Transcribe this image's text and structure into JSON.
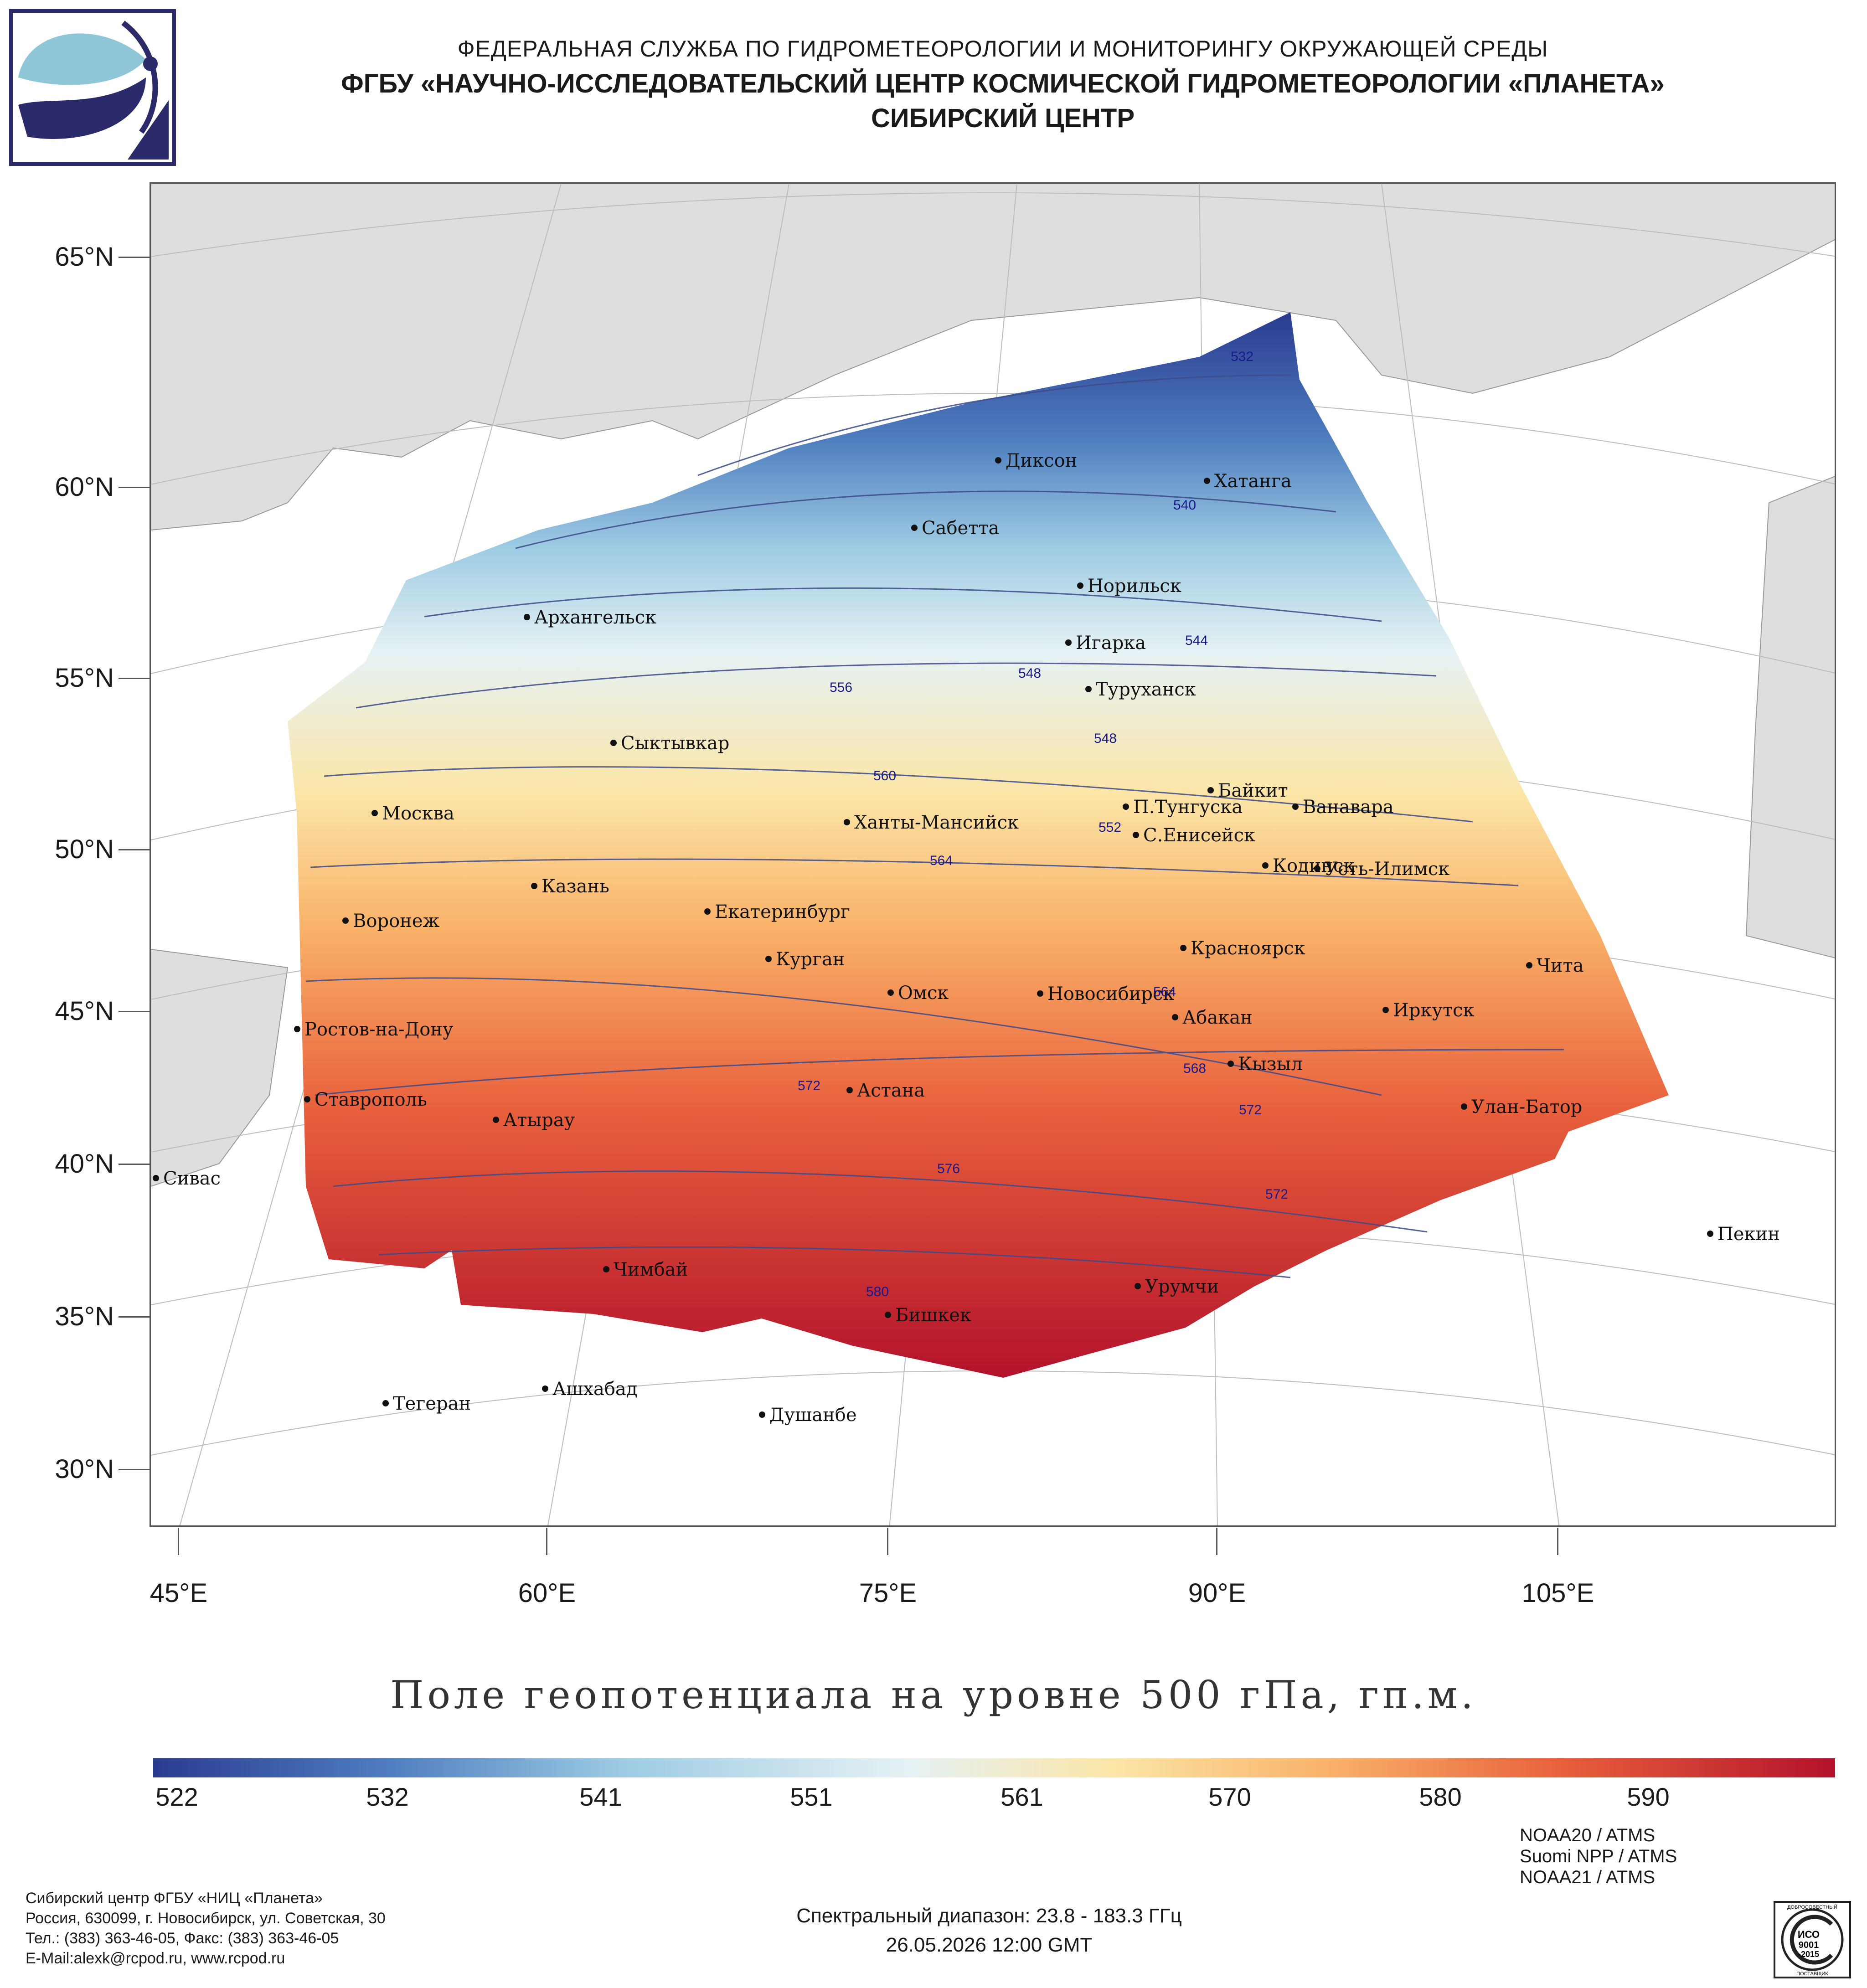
{
  "header": {
    "line1": "ФЕДЕРАЛЬНАЯ СЛУЖБА ПО ГИДРОМЕТЕОРОЛОГИИ И МОНИТОРИНГУ ОКРУЖАЮЩЕЙ СРЕДЫ",
    "line2": "ФГБУ «НАУЧНО-ИССЛЕДОВАТЕЛЬСКИЙ ЦЕНТР КОСМИЧЕСКОЙ ГИДРОМЕТЕОРОЛОГИИ «ПЛАНЕТА»",
    "line3": "СИБИРСКИЙ ЦЕНТР"
  },
  "map": {
    "title": "Поле геопотенциала на уровне 500 гПа, гп.м.",
    "lat_labels": [
      "65°N",
      "60°N",
      "55°N",
      "50°N",
      "45°N",
      "40°N",
      "35°N",
      "30°N"
    ],
    "lon_labels": [
      "45°E",
      "60°E",
      "75°E",
      "90°E",
      "105°E"
    ],
    "cities": [
      "Диксон",
      "Хатанга",
      "Сабетта",
      "Норильск",
      "Игарка",
      "Архангельск",
      "Туруханск",
      "Сыктывкар",
      "Байкит",
      "П.Тунгуска",
      "Ванавара",
      "Москва",
      "Ханты-Мансийск",
      "С.Енисейск",
      "Кодинск",
      "Усть-Илимск",
      "Казань",
      "Екатеринбург",
      "Воронеж",
      "Красноярск",
      "Курган",
      "Чита",
      "Омск",
      "Новосибирск",
      "Иркутск",
      "Ростов-на-Дону",
      "Абакан",
      "Кызыл",
      "Астана",
      "Ставрополь",
      "Улан-Батор",
      "Атырау",
      "Сивас",
      "Пекин",
      "Чимбай",
      "Урумчи",
      "Бишкек",
      "Ашхабад",
      "Тегеран",
      "Душанбе"
    ],
    "contour_labels": [
      "532",
      "540",
      "544",
      "548",
      "552",
      "556",
      "560",
      "564",
      "568",
      "572",
      "576",
      "580"
    ]
  },
  "colorbar": {
    "ticks": [
      "522",
      "532",
      "541",
      "551",
      "561",
      "570",
      "580",
      "590"
    ],
    "colors": [
      "#2a3b8f",
      "#4f7ec0",
      "#9dcbe3",
      "#e6f2f4",
      "#fbe6a8",
      "#f9b168",
      "#e85f3c",
      "#b3122b"
    ]
  },
  "footer": {
    "org": "Сибирский центр ФГБУ «НИЦ «Планета»",
    "address": "Россия, 630099, г. Новосибирск, ул. Советская, 30",
    "phone": "Тел.: (383) 363-46-05, Факс: (383) 363-46-05",
    "email": "E-Mail:alexk@rcpod.ru, www.rcpod.ru",
    "spectral": "Спектральный диапазон: 23.8 - 183.3 ГГц",
    "datetime": "26.05.2026 12:00 GMT",
    "sat1": "NOAA20 / ATMS",
    "sat2": "Suomi NPP / ATMS",
    "sat3": "NOAA21 / ATMS",
    "iso_text": "ИСО 9001 -2015",
    "iso_ring": "ДОБРОСОВЕСТНЫЙ ПОСТАВЩИК"
  }
}
